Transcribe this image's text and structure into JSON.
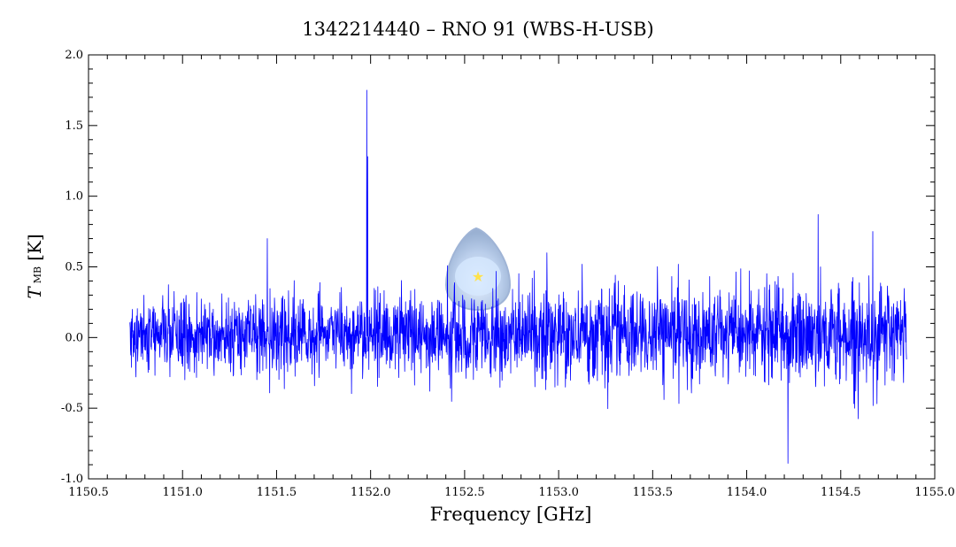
{
  "chart_data": {
    "type": "line",
    "title": "1342214440 – RNO 91 (WBS-H-USB)",
    "xlabel": "Frequency [GHz]",
    "ylabel": {
      "symbol": "T",
      "subscript": "MB",
      "unit": "[K]"
    },
    "xlim": [
      1150.5,
      1155.0
    ],
    "ylim": [
      -1.0,
      2.0
    ],
    "x_ticks": [
      "1150.5",
      "1151.0",
      "1151.5",
      "1152.0",
      "1152.5",
      "1153.0",
      "1153.5",
      "1154.0",
      "1154.5",
      "1155.0"
    ],
    "y_ticks": [
      "-1.0",
      "-0.5",
      "0.0",
      "0.5",
      "1.0",
      "1.5",
      "2.0"
    ],
    "grid": false,
    "color": "#0000ff",
    "series": [
      {
        "x_range": [
          1150.72,
          1154.85
        ],
        "description": "noisy spectrum centred near 0 K, rms ~0.15 K, noise increasing toward higher frequency",
        "features": [
          {
            "x": 1151.98,
            "y": 1.75
          },
          {
            "x": 1151.985,
            "y": 1.28
          },
          {
            "x": 1151.45,
            "y": 0.7
          },
          {
            "x": 1154.22,
            "y": -0.89
          },
          {
            "x": 1154.38,
            "y": 0.87
          },
          {
            "x": 1154.67,
            "y": 0.75
          }
        ]
      }
    ]
  },
  "watermark": {
    "icon": "herschel-logo-icon"
  }
}
